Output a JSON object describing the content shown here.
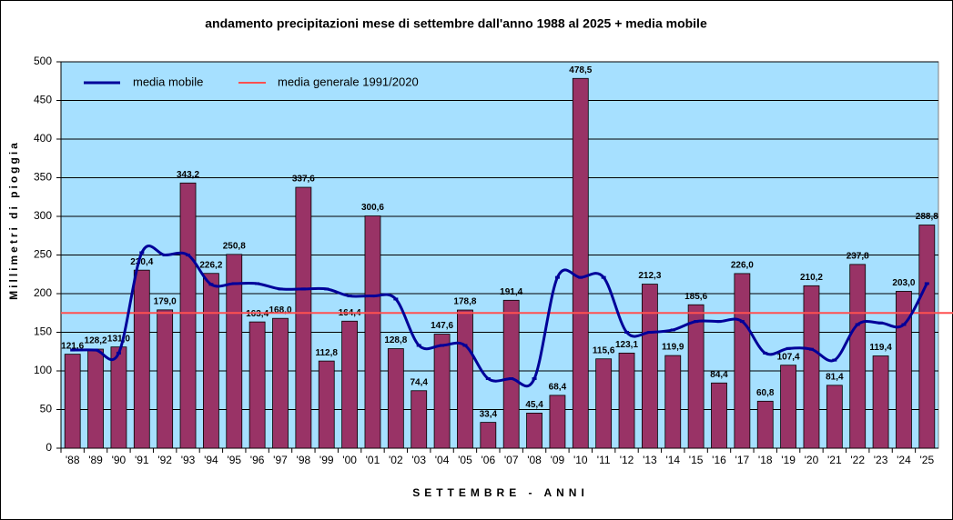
{
  "chart_data": {
    "type": "bar",
    "title": "andamento precipitazioni mese di settembre dall'anno 1988 al 2025 + media mobile",
    "xlabel": "SETTEMBRE - ANNI",
    "ylabel": "Millimetri di pioggia",
    "categories": [
      "'88",
      "'89",
      "'90",
      "'91",
      "'92",
      "'93",
      "'94",
      "'95",
      "'96",
      "'97",
      "'98",
      "'99",
      "'00",
      "'01",
      "'02",
      "'03",
      "'04",
      "'05",
      "'06",
      "'07",
      "'08",
      "'09",
      "'10",
      "'11",
      "'12",
      "'13",
      "'14",
      "'15",
      "'16",
      "'17",
      "'18",
      "'19",
      "'20",
      "'21",
      "'22",
      "'23",
      "'24",
      "'25"
    ],
    "values": [
      121.6,
      128.2,
      131.0,
      230.4,
      179.0,
      343.2,
      226.2,
      250.8,
      163.4,
      168.0,
      337.6,
      112.8,
      164.4,
      300.6,
      128.8,
      74.4,
      147.6,
      178.8,
      33.4,
      191.4,
      45.4,
      68.4,
      478.5,
      115.6,
      123.1,
      212.3,
      119.9,
      185.6,
      84.4,
      226.0,
      60.8,
      107.4,
      210.2,
      81.4,
      237.8,
      119.4,
      203.0,
      288.8
    ],
    "value_labels": [
      "121,6",
      "128,2",
      "131,0",
      "230,4",
      "179,0",
      "343,2",
      "226,2",
      "250,8",
      "163,4",
      "168,0",
      "337,6",
      "112,8",
      "164,4",
      "300,6",
      "128,8",
      "74,4",
      "147,6",
      "178,8",
      "33,4",
      "191,4",
      "45,4",
      "68,4",
      "478,5",
      "115,6",
      "123,1",
      "212,3",
      "119,9",
      "185,6",
      "84,4",
      "226,0",
      "60,8",
      "107,4",
      "210,2",
      "81,4",
      "237,8",
      "119,4",
      "203,0",
      "288,8"
    ],
    "color": "#993366",
    "series": [
      {
        "name": "media mobile",
        "color": "#000099",
        "values": [
          127,
          127,
          123,
          253,
          250,
          250,
          212,
          213,
          213,
          206,
          206,
          206,
          197,
          197,
          193,
          133,
          133,
          133,
          90,
          90,
          90,
          221,
          221,
          221,
          150,
          150,
          153,
          164,
          164,
          164,
          123,
          129,
          128,
          114,
          160,
          162,
          160,
          213
        ]
      }
    ],
    "reference": {
      "name": "media generale 1991/2020",
      "color": "#ff5050",
      "value": 175
    },
    "ylim": [
      0,
      500
    ],
    "yticks": [
      0,
      50,
      100,
      150,
      200,
      250,
      300,
      350,
      400,
      450,
      500
    ],
    "grid": true,
    "legend": "top-left",
    "background": "#a6e0ff"
  }
}
